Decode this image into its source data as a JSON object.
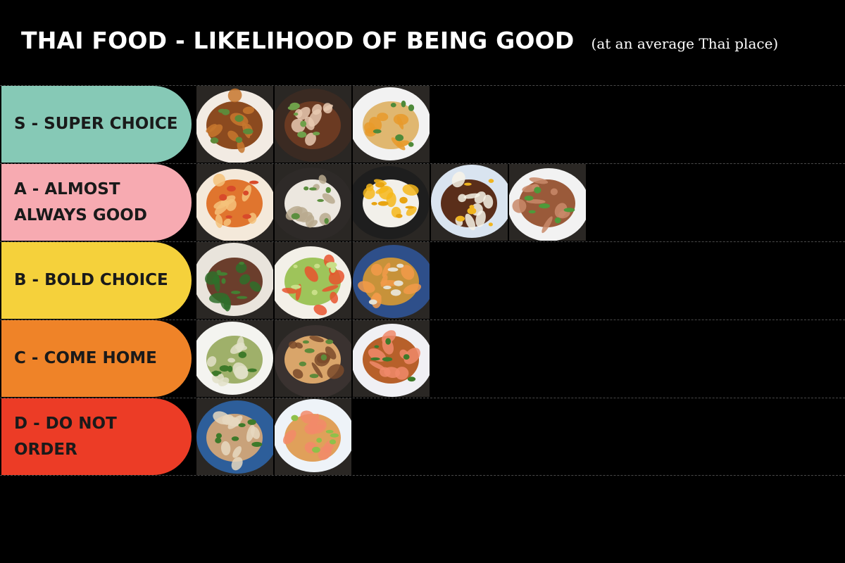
{
  "header": {
    "title": "THAI FOOD - LIKELIHOOD OF BEING GOOD",
    "subtitle": "(at an average Thai place)"
  },
  "tiers": [
    {
      "id": "s",
      "label": "S - SUPER CHOICE",
      "color": "#86c9b6",
      "dishes": [
        {
          "icon": "fried-chicken-dish-icon",
          "plate": "#f2ebe3",
          "food": "#8b4a1f",
          "accent": "#c7772e",
          "garnish": "#5e8a3a"
        },
        {
          "icon": "noodle-soup-dish-icon",
          "plate": "#3a2a22",
          "food": "#6b3a22",
          "accent": "#e8c9b0",
          "garnish": "#6fa04a"
        },
        {
          "icon": "crispy-noodle-curry-dish-icon",
          "plate": "#f2f2f2",
          "food": "#e0b770",
          "accent": "#e89a2a",
          "garnish": "#4e8a3a"
        }
      ]
    },
    {
      "id": "a",
      "label": "A - ALMOST\nALWAYS GOOD",
      "color": "#f7aab1",
      "dishes": [
        {
          "icon": "tom-yum-soup-dish-icon",
          "plate": "#f4e9da",
          "food": "#e0752e",
          "accent": "#f5c27a",
          "garnish": "#d84a2a"
        },
        {
          "icon": "coconut-soup-dish-icon",
          "plate": "#2e2a28",
          "food": "#ece7df",
          "accent": "#b9a98e",
          "garnish": "#5c8f3f"
        },
        {
          "icon": "mango-sticky-rice-dish-icon",
          "plate": "#1e1e1e",
          "food": "#f2f0ea",
          "accent": "#f6b71b",
          "garnish": "#e8a412"
        },
        {
          "icon": "basil-stir-fry-rice-dish-icon",
          "plate": "#d9e4f0",
          "food": "#5a2e1a",
          "accent": "#f7f3e8",
          "garnish": "#f0b520"
        },
        {
          "icon": "larb-salad-dish-icon",
          "plate": "#f2f2f2",
          "food": "#9a5a3a",
          "accent": "#c98a6a",
          "garnish": "#4e9a3a"
        }
      ]
    },
    {
      "id": "b",
      "label": "B - BOLD CHOICE",
      "color": "#f5d13b",
      "dishes": [
        {
          "icon": "beef-broccoli-dish-icon",
          "plate": "#e9e4dc",
          "food": "#6b3e2c",
          "accent": "#2f6e2a",
          "garnish": "#447f32"
        },
        {
          "icon": "papaya-salad-dish-icon",
          "plate": "#f3f0e8",
          "food": "#9ec45a",
          "accent": "#e8542e",
          "garnish": "#c9df88"
        },
        {
          "icon": "fried-oyster-dish-icon",
          "plate": "#2e4f8a",
          "food": "#c7923a",
          "accent": "#f29a4a",
          "garnish": "#e7e1d1"
        }
      ]
    },
    {
      "id": "c",
      "label": "C - COME HOME",
      "color": "#ef8328",
      "dishes": [
        {
          "icon": "green-curry-dish-icon",
          "plate": "#f4f4f0",
          "food": "#9fb06a",
          "accent": "#e2e0c8",
          "garnish": "#3e7a2a"
        },
        {
          "icon": "rad-na-noodles-dish-icon",
          "plate": "#3a3230",
          "food": "#d9a56a",
          "accent": "#7a4a2a",
          "garnish": "#5e8a3a"
        },
        {
          "icon": "pad-kee-mao-dish-icon",
          "plate": "#f0f0f4",
          "food": "#b7602a",
          "accent": "#f08a6a",
          "garnish": "#3e7a2a"
        }
      ]
    },
    {
      "id": "d",
      "label": "D - DO NOT\nORDER",
      "color": "#ec3c26",
      "dishes": [
        {
          "icon": "pad-see-ew-dish-icon",
          "plate": "#2d5e9a",
          "food": "#c9a27a",
          "accent": "#e6d8c0",
          "garnish": "#3e7a2a"
        },
        {
          "icon": "pad-thai-dish-icon",
          "plate": "#eef3f8",
          "food": "#e0a05a",
          "accent": "#f28a6a",
          "garnish": "#8fc04a"
        }
      ]
    }
  ]
}
